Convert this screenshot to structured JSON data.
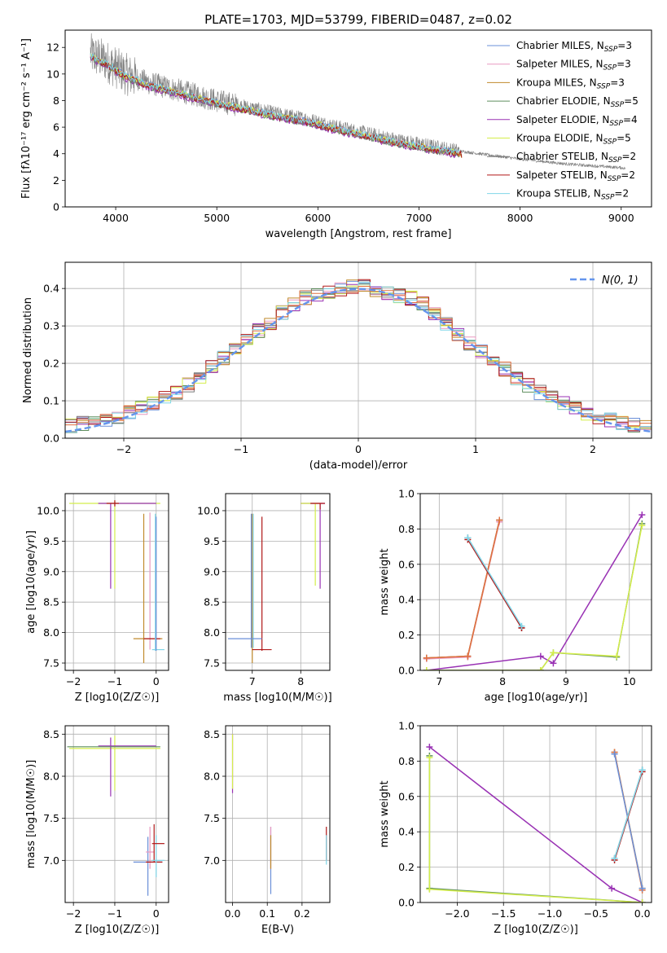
{
  "palette": {
    "grey_data": "#808080",
    "normal_curve": "#6495ed"
  },
  "chart_data": [
    {
      "id": "spectrum",
      "type": "line",
      "title": "PLATE=1703, MJD=53799, FIBERID=0487, z=0.02",
      "xlabel": "wavelength [Angstrom, rest frame]",
      "ylabel": "Flux [fλ10⁻¹⁷ erg cm⁻² s⁻¹ A⁻¹]",
      "xlim": [
        3500,
        9300
      ],
      "ylim": [
        0,
        13.3
      ],
      "xticks": [
        4000,
        5000,
        6000,
        7000,
        8000,
        9000
      ],
      "yticks": [
        0,
        2,
        4,
        6,
        8,
        10,
        12
      ],
      "grid": false,
      "legend_position": "upper-right",
      "data_color": "#808080",
      "data_continuum": {
        "x": [
          3750,
          3900,
          4000,
          4100,
          4300,
          4500,
          4700,
          5000,
          5300,
          5600,
          5900,
          6200,
          6500,
          6800,
          7100,
          7400,
          7700,
          8000,
          8500,
          9000,
          9040
        ],
        "y": [
          11.5,
          11.0,
          10.5,
          10.0,
          9.4,
          9.0,
          8.6,
          8.0,
          7.5,
          7.0,
          6.6,
          6.0,
          5.5,
          5.0,
          4.6,
          4.2,
          3.9,
          3.6,
          3.2,
          2.95,
          2.9
        ]
      },
      "series": [
        {
          "name": "Chabrier MILES, N_SSP=3",
          "color": "#6a8fd8"
        },
        {
          "name": "Salpeter MILES, N_SSP=3",
          "color": "#e899c0"
        },
        {
          "name": "Kroupa MILES, N_SSP=3",
          "color": "#c08a2c"
        },
        {
          "name": "Chabrier ELODIE, N_SSP=5",
          "color": "#5f8f5f"
        },
        {
          "name": "Salpeter ELODIE, N_SSP=4",
          "color": "#9932b4"
        },
        {
          "name": "Kroupa ELODIE, N_SSP=5",
          "color": "#d4ee4a"
        },
        {
          "name": "Chabrier STELIB, N_SSP=2",
          "color": "#7a7a7a"
        },
        {
          "name": "Salpeter STELIB, N_SSP=2",
          "color": "#b01818"
        },
        {
          "name": "Kroupa STELIB, N_SSP=2",
          "color": "#7fd6e8"
        }
      ],
      "legend_labels": [
        {
          "prefix": "Chabrier MILES, N",
          "sub": "SSP",
          "suffix": "=3"
        },
        {
          "prefix": "Salpeter MILES, N",
          "sub": "SSP",
          "suffix": "=3"
        },
        {
          "prefix": "Kroupa MILES, N",
          "sub": "SSP",
          "suffix": "=3"
        },
        {
          "prefix": "Chabrier ELODIE, N",
          "sub": "SSP",
          "suffix": "=5"
        },
        {
          "prefix": "Salpeter ELODIE, N",
          "sub": "SSP",
          "suffix": "=4"
        },
        {
          "prefix": "Kroupa ELODIE, N",
          "sub": "SSP",
          "suffix": "=5"
        },
        {
          "prefix": "Chabrier STELIB, N",
          "sub": "SSP",
          "suffix": "=2"
        },
        {
          "prefix": "Salpeter STELIB, N",
          "sub": "SSP",
          "suffix": "=2"
        },
        {
          "prefix": "Kroupa STELIB, N",
          "sub": "SSP",
          "suffix": "=2"
        }
      ]
    },
    {
      "id": "residuals",
      "type": "line",
      "xlabel": "(data-model)/error",
      "ylabel": "Normed distribution",
      "xlim": [
        -2.5,
        2.5
      ],
      "ylim": [
        0,
        0.47
      ],
      "xticks": [
        -2,
        -1,
        0,
        1,
        2
      ],
      "yticks": [
        0.0,
        0.1,
        0.2,
        0.3,
        0.4
      ],
      "grid": true,
      "legend_position": "upper-right",
      "legend_label": "N(0, 1)",
      "histogram_bin_width": 0.1,
      "histogram_shape": {
        "x": [
          -2.5,
          -2.0,
          -1.5,
          -1.0,
          -0.5,
          0.0,
          0.5,
          1.0,
          1.5,
          2.0,
          2.5
        ],
        "y": [
          0.03,
          0.06,
          0.13,
          0.25,
          0.37,
          0.41,
          0.37,
          0.24,
          0.13,
          0.06,
          0.025
        ]
      },
      "normal_curve": {
        "mean": 0,
        "sigma": 1,
        "color": "#6495ed"
      }
    },
    {
      "id": "age_vs_Z",
      "type": "scatter",
      "xlabel": "Z [log10(Z/Z☉)]",
      "ylabel": "age [log10(age/yr)]",
      "xlim": [
        -2.2,
        0.3
      ],
      "ylim": [
        7.38,
        10.28
      ],
      "xticks": [
        -2,
        -1,
        0
      ],
      "yticks": [
        7.5,
        8.0,
        8.5,
        9.0,
        9.5,
        10.0
      ],
      "grid": true,
      "errorbars": [
        {
          "x": -1.0,
          "y": 10.12,
          "xerr": [
            1.1,
            1.1
          ],
          "yerr": [
            1.4,
            0.05
          ],
          "color": "#d4ee4a"
        },
        {
          "x": -1.1,
          "y": 10.12,
          "xerr": [
            0.3,
            1.1
          ],
          "yerr": [
            1.4,
            0.0
          ],
          "color": "#9932b4"
        },
        {
          "x": -1.0,
          "y": 10.12,
          "xerr": [
            0.2,
            0.1
          ],
          "yerr": [
            0.05,
            0.05
          ],
          "color": "#b01818"
        },
        {
          "x": -0.3,
          "y": 9.95,
          "xerr": [
            0.0,
            0.0
          ],
          "yerr": [
            2.45,
            0.0
          ],
          "color": "#c08a2c"
        },
        {
          "x": -0.15,
          "y": 9.92,
          "xerr": [
            0.0,
            0.0
          ],
          "yerr": [
            2.2,
            0.05
          ],
          "color": "#e899c0"
        },
        {
          "x": -0.2,
          "y": 7.9,
          "xerr": [
            0.35,
            0.35
          ],
          "yerr": [
            0.0,
            0.0
          ],
          "color": "#c08a2c"
        },
        {
          "x": -0.1,
          "y": 7.9,
          "xerr": [
            0.2,
            0.2
          ],
          "yerr": [
            0.0,
            0.0
          ],
          "color": "#b01818"
        },
        {
          "x": 0.0,
          "y": 7.72,
          "xerr": [
            0.1,
            0.2
          ],
          "yerr": [
            0.0,
            0.0
          ],
          "color": "#7fd6e8"
        },
        {
          "x": -0.02,
          "y": 9.9,
          "xerr": [
            0.0,
            0.0
          ],
          "yerr": [
            2.2,
            0.05
          ],
          "color": "#7fd6e8"
        },
        {
          "x": -0.0,
          "y": 9.9,
          "xerr": [
            0.0,
            0.0
          ],
          "yerr": [
            2.2,
            0.0
          ],
          "color": "#6a8fd8"
        }
      ]
    },
    {
      "id": "age_vs_mass",
      "type": "scatter",
      "xlabel": "mass [log10(M/M☉)]",
      "ylabel": "",
      "xlim": [
        6.45,
        8.6
      ],
      "ylim": [
        7.38,
        10.28
      ],
      "xticks": [
        7,
        8
      ],
      "yticks": [
        7.5,
        8.0,
        8.5,
        9.0,
        9.5,
        10.0
      ],
      "grid": true,
      "errorbars": [
        {
          "x": 7.0,
          "y": 9.95,
          "xerr": [
            0.0,
            0.0
          ],
          "yerr": [
            2.45,
            0.0
          ],
          "color": "#c08a2c"
        },
        {
          "x": 7.02,
          "y": 9.95,
          "xerr": [
            0.0,
            0.0
          ],
          "yerr": [
            2.2,
            0.0
          ],
          "color": "#7fd6e8"
        },
        {
          "x": 6.98,
          "y": 9.95,
          "xerr": [
            0.0,
            0.0
          ],
          "yerr": [
            2.2,
            0.0
          ],
          "color": "#6a8fd8"
        },
        {
          "x": 7.2,
          "y": 9.9,
          "xerr": [
            0.0,
            0.0
          ],
          "yerr": [
            2.2,
            0.0
          ],
          "color": "#b01818"
        },
        {
          "x": 7.0,
          "y": 7.9,
          "xerr": [
            0.5,
            0.2
          ],
          "yerr": [
            0.0,
            0.0
          ],
          "color": "#6a8fd8"
        },
        {
          "x": 7.1,
          "y": 7.72,
          "xerr": [
            0.1,
            0.3
          ],
          "yerr": [
            0.0,
            0.0
          ],
          "color": "#b01818"
        },
        {
          "x": 8.4,
          "y": 10.12,
          "xerr": [
            0.4,
            0.1
          ],
          "yerr": [
            1.4,
            0.0
          ],
          "color": "#9932b4"
        },
        {
          "x": 8.3,
          "y": 10.12,
          "xerr": [
            0.3,
            0.1
          ],
          "yerr": [
            1.35,
            0.0
          ],
          "color": "#d4ee4a"
        },
        {
          "x": 8.4,
          "y": 10.12,
          "xerr": [
            0.2,
            0.1
          ],
          "yerr": [
            0.1,
            0.0
          ],
          "color": "#b01818"
        }
      ]
    },
    {
      "id": "weight_vs_age",
      "type": "line",
      "xlabel": "age [log10(age/yr)]",
      "ylabel": "mass weight",
      "xlim": [
        6.7,
        10.35
      ],
      "ylim": [
        0,
        1.0
      ],
      "xticks": [
        7,
        8,
        9,
        10
      ],
      "yticks": [
        0.0,
        0.2,
        0.4,
        0.6,
        0.8,
        1.0
      ],
      "grid": true,
      "series": [
        {
          "color": "#6a8fd8",
          "x": [
            6.8,
            7.45,
            7.95
          ],
          "y": [
            0.07,
            0.08,
            0.85
          ]
        },
        {
          "color": "#e899c0",
          "x": [
            6.8,
            7.45,
            7.95
          ],
          "y": [
            0.065,
            0.075,
            0.84
          ]
        },
        {
          "color": "#c08a2c",
          "x": [
            6.8,
            7.45,
            7.95
          ],
          "y": [
            0.07,
            0.08,
            0.85
          ]
        },
        {
          "color": "#e07040",
          "x": [
            6.8,
            7.45,
            7.95
          ],
          "y": [
            0.07,
            0.08,
            0.85
          ]
        },
        {
          "color": "#7a7a7a",
          "x": [
            7.45,
            8.3
          ],
          "y": [
            0.75,
            0.24
          ]
        },
        {
          "color": "#b01818",
          "x": [
            7.45,
            8.3
          ],
          "y": [
            0.74,
            0.24
          ]
        },
        {
          "color": "#7fd6e8",
          "x": [
            7.45,
            8.3
          ],
          "y": [
            0.75,
            0.25
          ]
        },
        {
          "color": "#9932b4",
          "x": [
            6.8,
            8.6,
            8.8,
            10.2
          ],
          "y": [
            0.0,
            0.08,
            0.04,
            0.88
          ]
        },
        {
          "color": "#5f8f5f",
          "x": [
            6.8,
            8.6,
            8.8,
            9.8,
            10.2
          ],
          "y": [
            0.0,
            0.0,
            0.1,
            0.075,
            0.83
          ]
        },
        {
          "color": "#d4ee4a",
          "x": [
            6.8,
            8.6,
            8.8,
            9.8,
            10.2
          ],
          "y": [
            0.0,
            0.0,
            0.1,
            0.08,
            0.82
          ]
        }
      ]
    },
    {
      "id": "mass_vs_Z",
      "type": "scatter",
      "xlabel": "Z [log10(Z/Z☉)]",
      "ylabel": "mass [log10(M/M☉)]",
      "xlim": [
        -2.2,
        0.3
      ],
      "ylim": [
        6.5,
        8.6
      ],
      "xticks": [
        -2,
        -1,
        0
      ],
      "yticks": [
        7.0,
        7.5,
        8.0,
        8.5
      ],
      "grid": true,
      "errorbars": [
        {
          "x": -1.0,
          "y": 8.33,
          "xerr": [
            1.1,
            1.1
          ],
          "yerr": [
            0.5,
            0.15
          ],
          "color": "#d4ee4a"
        },
        {
          "x": -1.1,
          "y": 8.36,
          "xerr": [
            0.3,
            1.1
          ],
          "yerr": [
            0.6,
            0.1
          ],
          "color": "#9932b4"
        },
        {
          "x": -1.05,
          "y": 8.35,
          "xerr": [
            1.1,
            1.15
          ],
          "yerr": [
            0.0,
            0.0
          ],
          "color": "#5f8f5f"
        },
        {
          "x": -0.2,
          "y": 6.98,
          "xerr": [
            0.35,
            0.35
          ],
          "yerr": [
            0.4,
            0.3
          ],
          "color": "#6a8fd8"
        },
        {
          "x": -0.15,
          "y": 7.1,
          "xerr": [
            0.1,
            0.1
          ],
          "yerr": [
            0.2,
            0.3
          ],
          "color": "#e899c0"
        },
        {
          "x": -0.05,
          "y": 6.98,
          "xerr": [
            0.2,
            0.2
          ],
          "yerr": [
            0.0,
            0.45
          ],
          "color": "#b01818"
        },
        {
          "x": 0.0,
          "y": 7.0,
          "xerr": [
            0.1,
            0.2
          ],
          "yerr": [
            0.2,
            0.3
          ],
          "color": "#7fd6e8"
        },
        {
          "x": 0.0,
          "y": 7.2,
          "xerr": [
            0.1,
            0.2
          ],
          "yerr": [
            0.0,
            0.0
          ],
          "color": "#b01818"
        }
      ]
    },
    {
      "id": "mass_vs_EBV",
      "type": "scatter",
      "xlabel": "E(B-V)",
      "ylabel": "",
      "xlim": [
        -0.02,
        0.28
      ],
      "ylim": [
        6.5,
        8.6
      ],
      "xticks": [
        0.0,
        0.1,
        0.2
      ],
      "yticks": [
        7.0,
        7.5,
        8.0,
        8.5
      ],
      "grid": true,
      "errorbars": [
        {
          "x": 0.0,
          "y": 8.2,
          "xerr": [
            0.0,
            0.0
          ],
          "yerr": [
            0.4,
            0.3
          ],
          "color": "#9932b4"
        },
        {
          "x": 0.0,
          "y": 8.15,
          "xerr": [
            0.0,
            0.0
          ],
          "yerr": [
            0.3,
            0.35
          ],
          "color": "#d4ee4a"
        },
        {
          "x": 0.11,
          "y": 6.95,
          "xerr": [
            0.0,
            0.0
          ],
          "yerr": [
            0.35,
            0.45
          ],
          "color": "#6a8fd8"
        },
        {
          "x": 0.11,
          "y": 7.1,
          "xerr": [
            0.0,
            0.0
          ],
          "yerr": [
            0.2,
            0.3
          ],
          "color": "#e899c0"
        },
        {
          "x": 0.11,
          "y": 7.0,
          "xerr": [
            0.0,
            0.0
          ],
          "yerr": [
            0.1,
            0.3
          ],
          "color": "#c08a2c"
        },
        {
          "x": 0.27,
          "y": 7.2,
          "xerr": [
            0.0,
            0.0
          ],
          "yerr": [
            0.2,
            0.2
          ],
          "color": "#b01818"
        },
        {
          "x": 0.27,
          "y": 7.1,
          "xerr": [
            0.0,
            0.0
          ],
          "yerr": [
            0.15,
            0.2
          ],
          "color": "#7fd6e8"
        }
      ]
    },
    {
      "id": "weight_vs_Z",
      "type": "line",
      "xlabel": "Z [log10(Z/Z☉)]",
      "ylabel": "mass weight",
      "xlim": [
        -2.4,
        0.1
      ],
      "ylim": [
        0,
        1.0
      ],
      "xticks": [
        -2.0,
        -1.5,
        -1.0,
        -0.5,
        0.0
      ],
      "yticks": [
        0.0,
        0.2,
        0.4,
        0.6,
        0.8,
        1.0
      ],
      "grid": true,
      "series": [
        {
          "color": "#9932b4",
          "x": [
            -2.3,
            -0.33,
            0.0
          ],
          "y": [
            0.88,
            0.08,
            0.0
          ]
        },
        {
          "color": "#5f8f5f",
          "x": [
            -2.3,
            -2.3,
            0.0
          ],
          "y": [
            0.83,
            0.08,
            0.0
          ]
        },
        {
          "color": "#d4ee4a",
          "x": [
            -2.3,
            -2.3,
            0.0
          ],
          "y": [
            0.82,
            0.075,
            0.0
          ]
        },
        {
          "color": "#c08a2c",
          "x": [
            -0.3,
            0.0
          ],
          "y": [
            0.85,
            0.08
          ]
        },
        {
          "color": "#e07040",
          "x": [
            -0.3,
            0.0
          ],
          "y": [
            0.85,
            0.07
          ]
        },
        {
          "color": "#6a8fd8",
          "x": [
            -0.3,
            0.0
          ],
          "y": [
            0.84,
            0.08
          ]
        },
        {
          "color": "#7a7a7a",
          "x": [
            -0.3,
            0.0
          ],
          "y": [
            0.25,
            0.75
          ]
        },
        {
          "color": "#b01818",
          "x": [
            -0.3,
            0.0
          ],
          "y": [
            0.24,
            0.74
          ]
        },
        {
          "color": "#7fd6e8",
          "x": [
            -0.3,
            0.0
          ],
          "y": [
            0.25,
            0.75
          ]
        }
      ]
    }
  ]
}
